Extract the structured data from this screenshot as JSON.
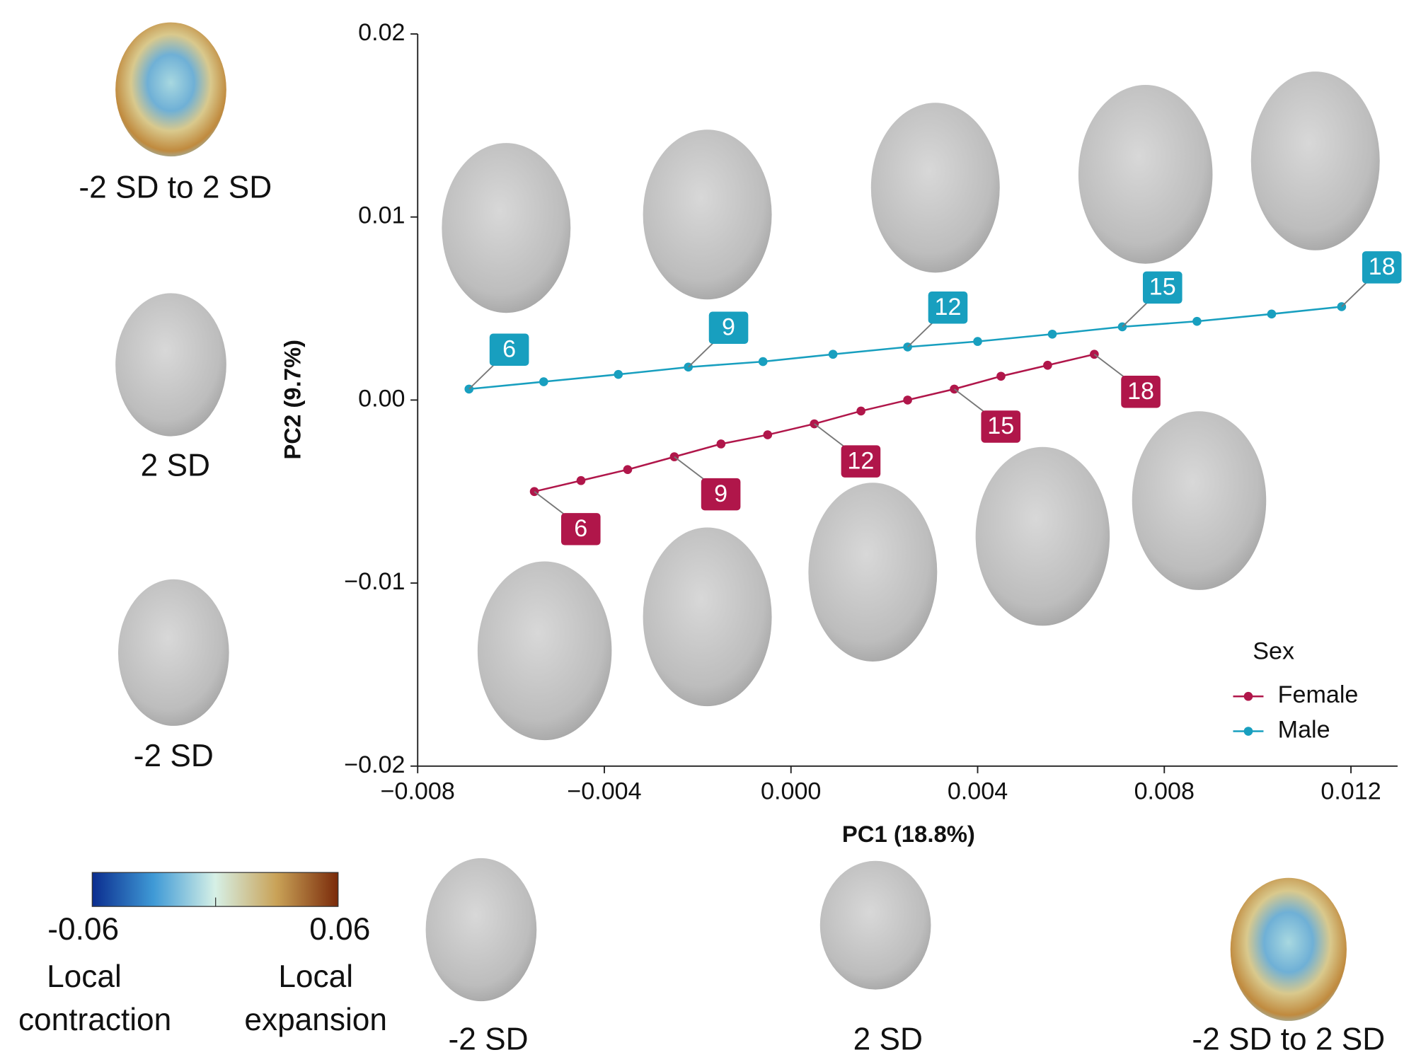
{
  "chart_data": {
    "type": "line",
    "x_label": "PC1 (18.8%)",
    "y_label": "PC2 (9.7%)",
    "xlim": [
      -0.008,
      0.013
    ],
    "ylim": [
      -0.02,
      0.02
    ],
    "xticks": [
      {
        "value": -0.008,
        "label": "−0.008"
      },
      {
        "value": -0.004,
        "label": "−0.004"
      },
      {
        "value": 0,
        "label": "0.000"
      },
      0.004,
      0.008,
      0.012
    ],
    "yticks": [
      {
        "value": -0.02,
        "label": "−0.02"
      },
      {
        "value": -0.01,
        "label": "−0.01"
      },
      {
        "value": 0,
        "label": "0.00"
      },
      0.01,
      0.02
    ],
    "legend_title": "Sex",
    "legend_position": "lower right",
    "series": [
      {
        "name": "Female",
        "color": "#b0164a",
        "x": [
          -0.0055,
          -0.0045,
          -0.0035,
          -0.0025,
          -0.0015,
          -0.0005,
          0.0005,
          0.0015,
          0.0025,
          0.0035,
          0.0045,
          0.0055,
          0.0065
        ],
        "values": [
          -0.005,
          -0.0044,
          -0.0038,
          -0.0031,
          -0.0024,
          -0.0019,
          -0.0013,
          -0.0006,
          0.0,
          0.0006,
          0.0013,
          0.0019,
          0.0025
        ],
        "point_labels": [
          6,
          null,
          null,
          9,
          null,
          null,
          12,
          null,
          null,
          15,
          null,
          null,
          18
        ]
      },
      {
        "name": "Male",
        "color": "#189fbf",
        "x": [
          -0.0069,
          -0.0053,
          -0.0037,
          -0.0022,
          -0.0006,
          0.0009,
          0.0025,
          0.004,
          0.0056,
          0.0071,
          0.0087,
          0.0103,
          0.0118
        ],
        "values": [
          0.0006,
          0.001,
          0.0014,
          0.0018,
          0.0021,
          0.0025,
          0.0029,
          0.0032,
          0.0036,
          0.004,
          0.0043,
          0.0047,
          0.0051
        ],
        "point_labels": [
          6,
          null,
          null,
          9,
          null,
          null,
          12,
          null,
          null,
          15,
          null,
          null,
          18
        ]
      }
    ]
  },
  "colorbar": {
    "range": [
      -0.06,
      0.06
    ],
    "ticks": [
      -0.06,
      0.06
    ],
    "left_caption": [
      "Local",
      "contraction"
    ],
    "right_caption": [
      "Local",
      "expansion"
    ]
  },
  "face_captions": {
    "pc2_heatmap": "-2 SD to 2 SD",
    "pc2_plus": "2 SD",
    "pc2_minus": "-2 SD",
    "pc1_minus": "-2 SD",
    "pc1_plus": "2 SD",
    "pc1_heatmap": "-2 SD to 2 SD"
  }
}
